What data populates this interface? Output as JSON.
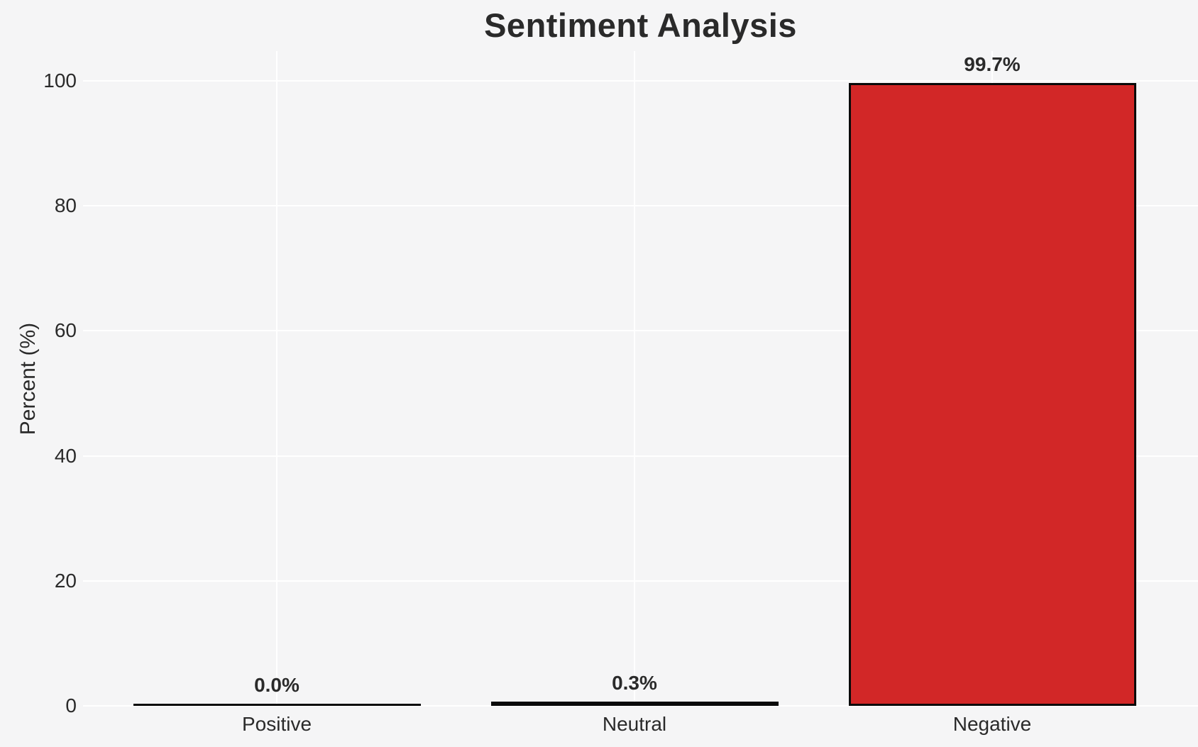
{
  "chart_data": {
    "type": "bar",
    "title": "Sentiment Analysis",
    "xlabel": "",
    "ylabel": "Percent (%)",
    "categories": [
      "Positive",
      "Neutral",
      "Negative"
    ],
    "values": [
      0.0,
      0.3,
      99.7
    ],
    "value_labels": [
      "0.0%",
      "0.3%",
      "99.7%"
    ],
    "yticks": [
      0,
      20,
      40,
      60,
      80,
      100
    ],
    "ylim": [
      0,
      104.7
    ],
    "grid": "on",
    "legend": "none",
    "bar_colors": [
      "#0a0a0a",
      "#0a0a0a",
      "#d22727"
    ],
    "bar_edge_color": "#0a0a0a",
    "background_color": "#f5f5f6",
    "grid_color": "#ffffff",
    "text_color": "#2a2a2a"
  }
}
